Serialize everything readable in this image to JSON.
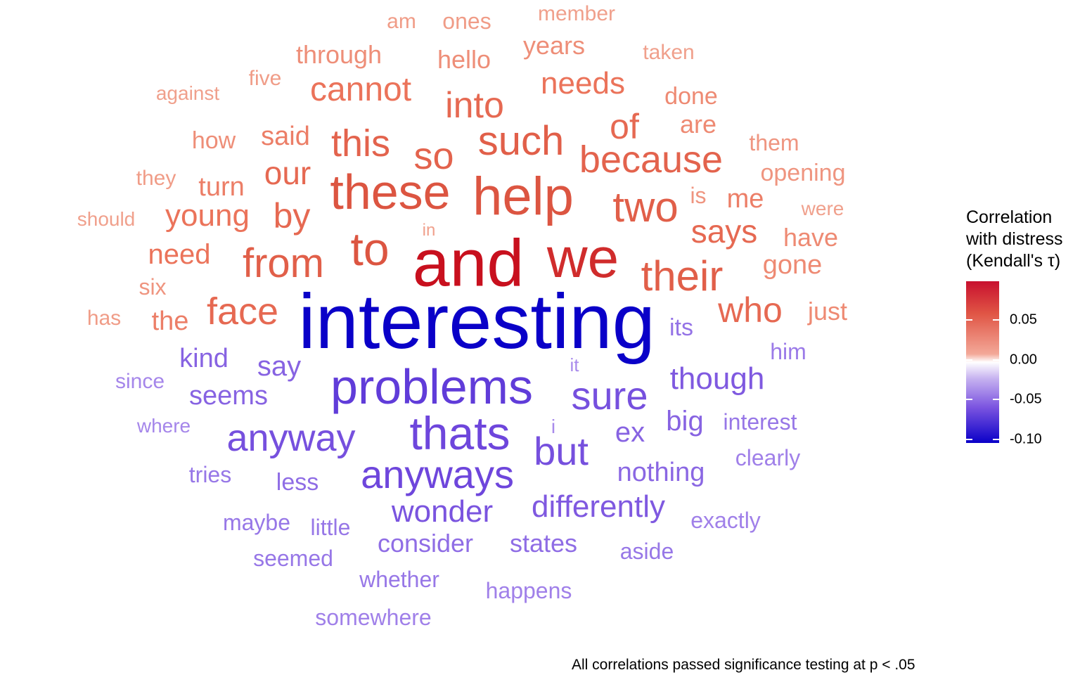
{
  "chart_data": {
    "type": "wordcloud",
    "words": [
      {
        "text": "interesting",
        "tau": -0.11
      },
      {
        "text": "and",
        "tau": 0.1
      },
      {
        "text": "we",
        "tau": 0.09
      },
      {
        "text": "help",
        "tau": 0.075
      },
      {
        "text": "these",
        "tau": 0.075
      },
      {
        "text": "to",
        "tau": 0.075
      },
      {
        "text": "two",
        "tau": 0.07
      },
      {
        "text": "their",
        "tau": 0.07
      },
      {
        "text": "from",
        "tau": 0.07
      },
      {
        "text": "such",
        "tau": 0.07
      },
      {
        "text": "because",
        "tau": 0.068
      },
      {
        "text": "this",
        "tau": 0.068
      },
      {
        "text": "so",
        "tau": 0.068
      },
      {
        "text": "into",
        "tau": 0.065
      },
      {
        "text": "face",
        "tau": 0.065
      },
      {
        "text": "who",
        "tau": 0.065
      },
      {
        "text": "of",
        "tau": 0.065
      },
      {
        "text": "by",
        "tau": 0.065
      },
      {
        "text": "our",
        "tau": 0.065
      },
      {
        "text": "says",
        "tau": 0.065
      },
      {
        "text": "cannot",
        "tau": 0.06
      },
      {
        "text": "needs",
        "tau": 0.06
      },
      {
        "text": "young",
        "tau": 0.06
      },
      {
        "text": "need",
        "tau": 0.06
      },
      {
        "text": "me",
        "tau": 0.055
      },
      {
        "text": "said",
        "tau": 0.055
      },
      {
        "text": "turn",
        "tau": 0.055
      },
      {
        "text": "the",
        "tau": 0.055
      },
      {
        "text": "gone",
        "tau": 0.05
      },
      {
        "text": "just",
        "tau": 0.05
      },
      {
        "text": "are",
        "tau": 0.05
      },
      {
        "text": "done",
        "tau": 0.05
      },
      {
        "text": "have",
        "tau": 0.05
      },
      {
        "text": "how",
        "tau": 0.048
      },
      {
        "text": "through",
        "tau": 0.048
      },
      {
        "text": "hello",
        "tau": 0.048
      },
      {
        "text": "years",
        "tau": 0.048
      },
      {
        "text": "opening",
        "tau": 0.045
      },
      {
        "text": "six",
        "tau": 0.045
      },
      {
        "text": "them",
        "tau": 0.045
      },
      {
        "text": "is",
        "tau": 0.045
      },
      {
        "text": "has",
        "tau": 0.042
      },
      {
        "text": "they",
        "tau": 0.042
      },
      {
        "text": "five",
        "tau": 0.042
      },
      {
        "text": "ones",
        "tau": 0.042
      },
      {
        "text": "am",
        "tau": 0.042
      },
      {
        "text": "member",
        "tau": 0.04
      },
      {
        "text": "taken",
        "tau": 0.04
      },
      {
        "text": "against",
        "tau": 0.04
      },
      {
        "text": "should",
        "tau": 0.04
      },
      {
        "text": "were",
        "tau": 0.04
      },
      {
        "text": "in",
        "tau": 0.04
      },
      {
        "text": "problems",
        "tau": -0.08
      },
      {
        "text": "thats",
        "tau": -0.075
      },
      {
        "text": "anyways",
        "tau": -0.075
      },
      {
        "text": "anyway",
        "tau": -0.07
      },
      {
        "text": "sure",
        "tau": -0.07
      },
      {
        "text": "but",
        "tau": -0.07
      },
      {
        "text": "wonder",
        "tau": -0.068
      },
      {
        "text": "though",
        "tau": -0.065
      },
      {
        "text": "differently",
        "tau": -0.065
      },
      {
        "text": "say",
        "tau": -0.06
      },
      {
        "text": "ex",
        "tau": -0.06
      },
      {
        "text": "big",
        "tau": -0.06
      },
      {
        "text": "kind",
        "tau": -0.06
      },
      {
        "text": "seems",
        "tau": -0.06
      },
      {
        "text": "nothing",
        "tau": -0.058
      },
      {
        "text": "consider",
        "tau": -0.055
      },
      {
        "text": "states",
        "tau": -0.055
      },
      {
        "text": "less",
        "tau": -0.055
      },
      {
        "text": "its",
        "tau": -0.052
      },
      {
        "text": "interest",
        "tau": -0.05
      },
      {
        "text": "whether",
        "tau": -0.05
      },
      {
        "text": "tries",
        "tau": -0.05
      },
      {
        "text": "little",
        "tau": -0.05
      },
      {
        "text": "maybe",
        "tau": -0.05
      },
      {
        "text": "seemed",
        "tau": -0.05
      },
      {
        "text": "aside",
        "tau": -0.05
      },
      {
        "text": "him",
        "tau": -0.048
      },
      {
        "text": "clearly",
        "tau": -0.045
      },
      {
        "text": "exactly",
        "tau": -0.045
      },
      {
        "text": "happens",
        "tau": -0.045
      },
      {
        "text": "somewhere",
        "tau": -0.045
      },
      {
        "text": "since",
        "tau": -0.042
      },
      {
        "text": "where",
        "tau": -0.042
      },
      {
        "text": "it",
        "tau": -0.04
      },
      {
        "text": "i",
        "tau": -0.04
      }
    ],
    "legend": {
      "title_lines": [
        "Correlation",
        "with distress",
        "(Kendall's τ)"
      ],
      "ticks": [
        "0.05",
        "0.00",
        "-0.05",
        "-0.10"
      ],
      "tick_values": [
        0.05,
        0.0,
        -0.05,
        -0.1
      ],
      "range": [
        -0.11,
        0.1
      ],
      "placement": "right"
    },
    "caption": "All correlations passed significance testing at p < .05"
  }
}
